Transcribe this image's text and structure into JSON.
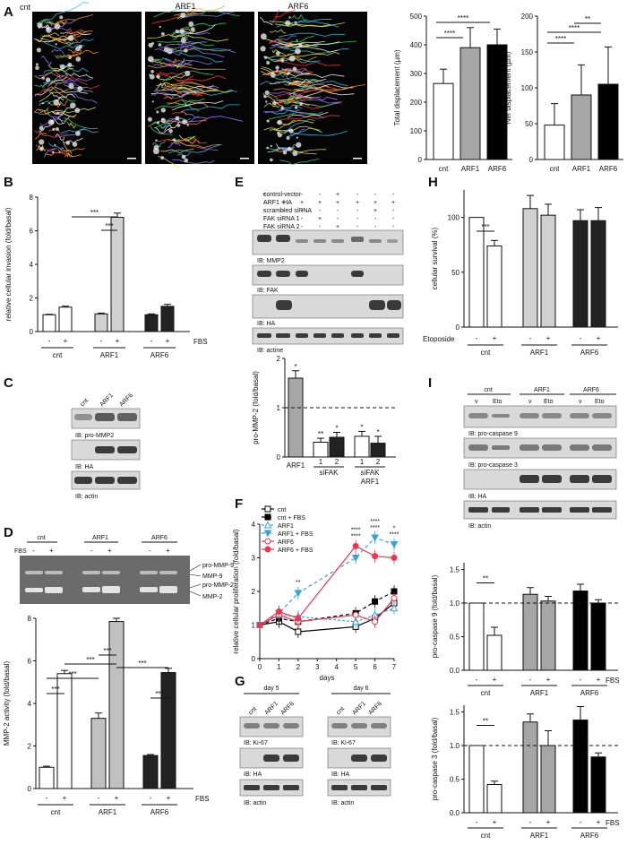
{
  "panels": {
    "A": "A",
    "B": "B",
    "C": "C",
    "D": "D",
    "E": "E",
    "F": "F",
    "G": "G",
    "H": "H",
    "I": "I"
  },
  "micrographs": {
    "labels": [
      "cnt",
      "ARF1",
      "ARF6"
    ]
  },
  "sig": {
    "s4": "****",
    "s3": "***",
    "s2": "**",
    "s1": "*"
  },
  "charts": {
    "total_disp": {
      "type": "bar",
      "categories": [
        "cnt",
        "ARF1",
        "ARF6"
      ],
      "values": [
        265,
        390,
        400
      ],
      "errors": [
        50,
        70,
        55
      ],
      "ylabel": "Total displacement (µm)",
      "yticks": [
        0,
        100,
        200,
        300,
        400,
        500
      ],
      "colors": [
        "#ffffff",
        "#a6a6a6",
        "#000000"
      ]
    },
    "net_disp": {
      "type": "bar",
      "categories": [
        "cnt",
        "ARF1",
        "ARF6"
      ],
      "values": [
        48,
        90,
        105
      ],
      "errors": [
        30,
        42,
        52
      ],
      "ylabel": "Net displacement (µm)",
      "yticks": [
        0,
        50,
        100,
        150,
        200
      ],
      "colors": [
        "#ffffff",
        "#a6a6a6",
        "#000000"
      ]
    },
    "invasion": {
      "type": "bar",
      "ylabel": "relative cellular invasion (fold/basal)",
      "yticks": [
        0,
        2,
        4,
        6,
        8
      ],
      "fbs": "FBS",
      "minus": "-",
      "plus": "+",
      "groups": [
        "cnt",
        "ARF1",
        "ARF6"
      ],
      "values": [
        1.0,
        1.45,
        1.05,
        6.8,
        1.0,
        1.5
      ],
      "errors": [
        0.03,
        0.06,
        0.05,
        0.25,
        0.05,
        0.12
      ]
    },
    "mmp2_activity": {
      "type": "bar",
      "ylabel": "MMP-2 activity (fold/basal)",
      "yticks": [
        0,
        2,
        4,
        6,
        8
      ],
      "values": [
        1.0,
        5.4,
        3.3,
        7.85,
        1.55,
        5.45
      ],
      "errors": [
        0.05,
        0.15,
        0.25,
        0.15,
        0.05,
        0.2
      ]
    },
    "promm2": {
      "type": "bar",
      "ylabel": "pro-MMP-2 (fold/basal)",
      "yticks": [
        0,
        1,
        2
      ],
      "categories": [
        "ARF1",
        "1",
        "2",
        "1",
        "2"
      ],
      "group_labels": [
        "siFAK",
        "siFAK",
        "ARF1"
      ],
      "values": [
        1.6,
        0.3,
        0.4,
        0.42,
        0.28
      ],
      "errors": [
        0.15,
        0.08,
        0.1,
        0.1,
        0.14
      ]
    },
    "proliferation": {
      "type": "line",
      "ylabel": "relative cellular proliferation (fold/basal)",
      "xlabel": "days",
      "xticks": [
        0,
        1,
        2,
        3,
        4,
        5,
        6,
        7
      ],
      "yticks": [
        0,
        1,
        2,
        3,
        4
      ],
      "series": [
        {
          "name": "cnt",
          "color": "#000000",
          "dash": "",
          "marker": "square-open",
          "x": [
            0,
            1,
            2,
            5,
            6,
            7
          ],
          "y": [
            1.0,
            1.1,
            0.8,
            0.95,
            1.2,
            1.65
          ]
        },
        {
          "name": "cnt + FBS",
          "color": "#000000",
          "dash": "4,3",
          "marker": "square",
          "x": [
            0,
            1,
            2,
            5,
            6,
            7
          ],
          "y": [
            1.0,
            1.2,
            1.1,
            1.35,
            1.7,
            2.0
          ]
        },
        {
          "name": "ARF1",
          "color": "#3aa0dc",
          "dash": "3,2",
          "marker": "triangle-open",
          "x": [
            0,
            1,
            2,
            5,
            6,
            7
          ],
          "y": [
            1.0,
            1.3,
            1.25,
            1.1,
            1.3,
            1.5
          ]
        },
        {
          "name": "ARF1 + FBS",
          "color": "#3aa0dc",
          "dash": "4,3",
          "marker": "triangle-down",
          "x": [
            0,
            1,
            2,
            5,
            6,
            7
          ],
          "y": [
            1.0,
            1.35,
            1.95,
            3.0,
            3.6,
            3.4
          ]
        },
        {
          "name": "ARF6",
          "color": "#e8384f",
          "dash": "",
          "marker": "circle-open",
          "x": [
            0,
            1,
            2,
            5,
            6,
            7
          ],
          "y": [
            1.0,
            1.3,
            1.1,
            1.3,
            1.1,
            1.8
          ]
        },
        {
          "name": "ARF6 + FBS",
          "color": "#e8384f",
          "dash": "",
          "marker": "circle",
          "x": [
            0,
            1,
            2,
            5,
            6,
            7
          ],
          "y": [
            1.0,
            1.4,
            1.2,
            3.35,
            3.05,
            3.0
          ]
        }
      ]
    },
    "survival": {
      "type": "bar",
      "ylabel": "cellular survival (%)",
      "yticks": [
        0,
        50,
        100
      ],
      "treat": "Etoposide",
      "values": [
        100,
        74,
        108,
        102,
        97,
        97
      ],
      "errors": [
        0,
        5,
        12,
        10,
        10,
        12
      ],
      "colors": [
        "#ffffff",
        "#ffffff",
        "#d0d0d0",
        "#d0d0d0",
        "#222222",
        "#222222"
      ]
    },
    "procasp9": {
      "type": "bar",
      "ylabel": "pro-caspase 9 (fold/basal)",
      "yticks": [
        0.0,
        0.5,
        1.0,
        1.5
      ],
      "values": [
        1.0,
        0.52,
        1.13,
        1.03,
        1.18,
        1.0
      ],
      "errors": [
        0,
        0.12,
        0.1,
        0.07,
        0.1,
        0.05
      ]
    },
    "procasp3": {
      "type": "bar",
      "ylabel": "pro-caspase 3 (fold/basal)",
      "yticks": [
        0.0,
        0.5,
        1.0,
        1.5
      ],
      "values": [
        1.0,
        0.42,
        1.35,
        1.0,
        1.38,
        0.83
      ],
      "errors": [
        0,
        0.05,
        0.12,
        0.22,
        0.2,
        0.06
      ]
    }
  },
  "blots": {
    "C": {
      "cols": [
        "cnt",
        "ARF1",
        "ARF6"
      ],
      "rows": [
        "IB: pro-MMP2",
        "IB: HA",
        "IB: actin"
      ]
    },
    "D": {
      "groups": [
        "cnt",
        "ARF1",
        "ARF6"
      ],
      "fbs": "FBS",
      "bands": [
        "pro-MMP-9",
        "MMP-9",
        "pro-MMP-2",
        "MMP-2"
      ]
    },
    "E": {
      "conditions": [
        "control vector",
        "ARF1 -HA",
        "scrambled siRNA",
        "FAK siRNA 1",
        "FAK siRNA 2"
      ],
      "signs": [
        [
          "+",
          "",
          "",
          "",
          "+",
          "",
          "",
          ""
        ],
        [
          "",
          "+",
          "+",
          "+",
          "+",
          "+",
          "+",
          "+"
        ],
        [
          "",
          "",
          "+",
          "",
          "",
          "",
          "+",
          ""
        ],
        [
          "",
          "",
          "",
          "+",
          "",
          "",
          "",
          ""
        ],
        [
          "",
          "",
          "",
          "",
          "+",
          "",
          "",
          ""
        ]
      ],
      "rows": [
        "IB: MMP2",
        "IB: FAK",
        "IB: HA",
        "IB: actine"
      ]
    },
    "G": {
      "days": [
        "day 5",
        "day 6"
      ],
      "cols": [
        "cnt",
        "ARF1",
        "ARF6"
      ],
      "rows": [
        "IB: Ki-67",
        "IB: HA",
        "IB: actin"
      ]
    },
    "I": {
      "groups": [
        "cnt",
        "ARF1",
        "ARF6"
      ],
      "sub": [
        "v",
        "Eto"
      ],
      "rows": [
        "IB: pro-caspase 9",
        "IB: pro-caspase 3",
        "IB: HA",
        "IB: actin"
      ]
    }
  }
}
